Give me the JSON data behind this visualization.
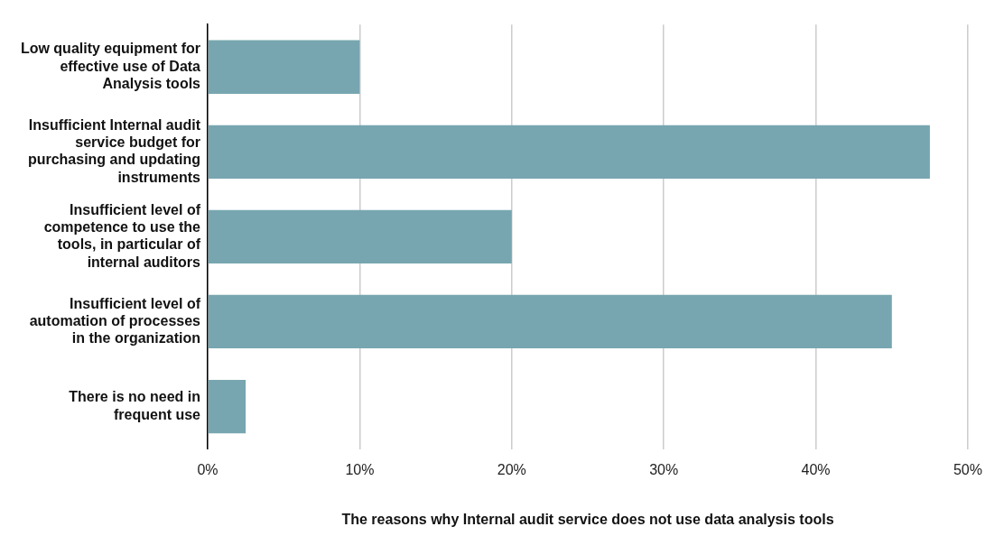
{
  "chart_data": {
    "type": "bar",
    "orientation": "horizontal",
    "xlabel": "The reasons why Internal audit service does not use data analysis tools",
    "categories": [
      "Low quality equipment for effective use of Data Analysis tools",
      "Insufficient Internal audit service budget for purchasing and updating instruments",
      "Insufficient level of competence to use the tools, in particular of internal auditors",
      "Insufficient level of automation of processes in the organization",
      "There is no need in frequent use"
    ],
    "values": [
      10,
      47.5,
      20,
      45,
      2.5
    ],
    "color": "#77a6b0",
    "xlim": [
      0,
      50
    ],
    "xticks": [
      {
        "value": 0,
        "label": "0%"
      },
      {
        "value": 10,
        "label": "10%"
      },
      {
        "value": 20,
        "label": "20%"
      },
      {
        "value": 30,
        "label": "30%"
      },
      {
        "value": 40,
        "label": "40%"
      },
      {
        "value": 50,
        "label": "50%"
      }
    ],
    "grid": "x",
    "legend": false
  }
}
